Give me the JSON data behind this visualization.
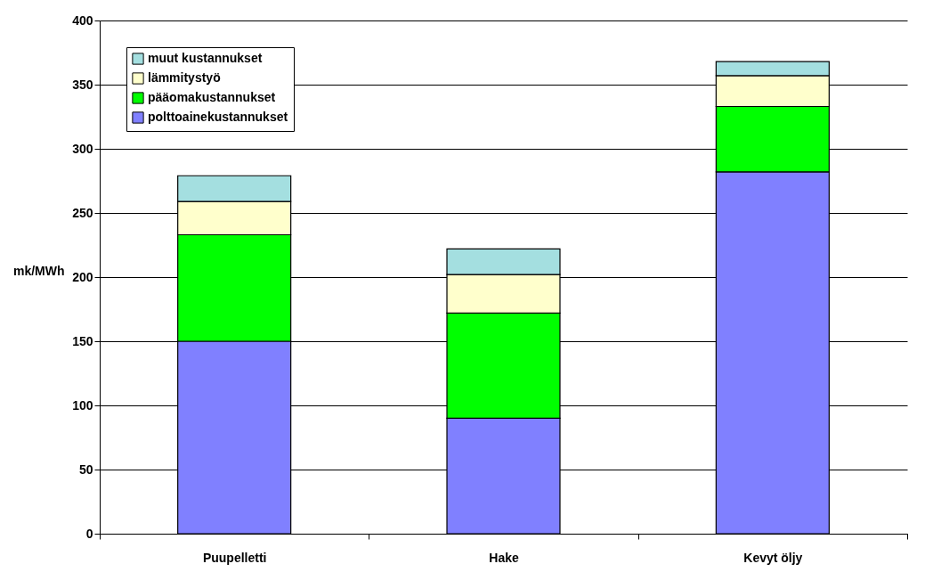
{
  "chart_data": {
    "type": "bar",
    "stacked": true,
    "ylabel": "mk/MWh",
    "categories": [
      "Puupelletti",
      "Hake",
      "Kevyt öljy"
    ],
    "series": [
      {
        "name": "polttoainekustannukset",
        "color": "#8080ff",
        "values": [
          150,
          90,
          282
        ]
      },
      {
        "name": "pääomakustannukset",
        "color": "#00ff00",
        "values": [
          83,
          82,
          51
        ]
      },
      {
        "name": "lämmitystyö",
        "color": "#ffffcc",
        "values": [
          26,
          30,
          24
        ]
      },
      {
        "name": "muut kustannukset",
        "color": "#a4dfe0",
        "values": [
          20,
          20,
          11
        ]
      }
    ],
    "ylim": [
      0,
      400
    ],
    "yticks": [
      0,
      50,
      100,
      150,
      200,
      250,
      300,
      350,
      400
    ],
    "grid": "y",
    "legend": "top left"
  }
}
